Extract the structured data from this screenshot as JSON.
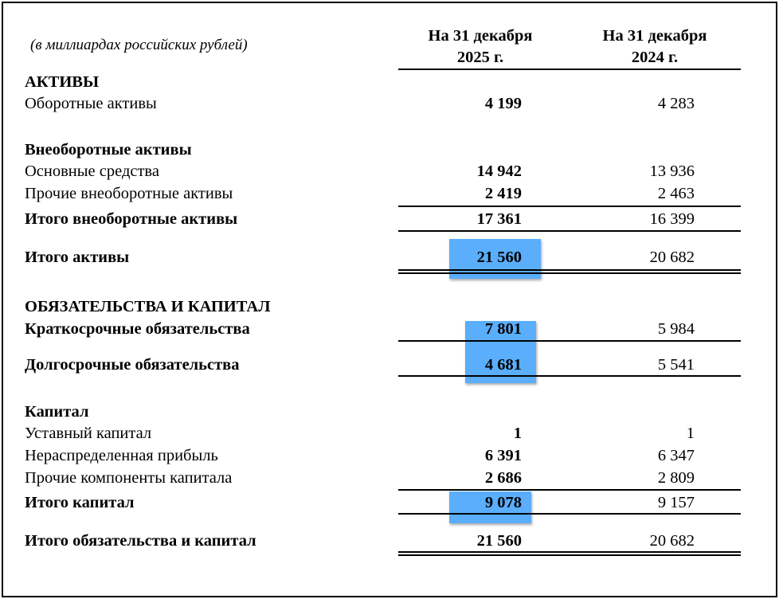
{
  "subtitle": "(в миллиардах российских рублей)",
  "columns": [
    {
      "line1": "На 31 декабря",
      "line2": "2025 г."
    },
    {
      "line1": "На 31 декабря",
      "line2": "2024 г."
    }
  ],
  "highlight_color": "#5aaefc",
  "rows": [
    {
      "label": "АКТИВЫ",
      "bold": true
    },
    {
      "label": "Оборотные активы",
      "v2025": "4 199",
      "v2024": "4 283"
    },
    {
      "label": "Внеоборотные активы",
      "bold": true
    },
    {
      "label": "Основные средства",
      "v2025": "14 942",
      "v2024": "13 936"
    },
    {
      "label": "Прочие внеоборотные активы",
      "v2025": "2 419",
      "v2024": "2 463"
    },
    {
      "label": "Итого внеоборотные активы",
      "bold": true,
      "v2025": "17 361",
      "v2024": "16 399"
    },
    {
      "label": "Итого активы",
      "bold": true,
      "v2025": "21 560",
      "v2024": "20 682",
      "highlighted": true
    },
    {
      "label": "ОБЯЗАТЕЛЬСТВА И КАПИТАЛ",
      "bold": true
    },
    {
      "label": "Краткосрочные обязательства",
      "bold": true,
      "v2025": "7 801",
      "v2024": "5 984",
      "highlighted": true
    },
    {
      "label": "Долгосрочные обязательства",
      "bold": true,
      "v2025": "4 681",
      "v2024": "5 541",
      "highlighted": true
    },
    {
      "label": "Капитал",
      "bold": true
    },
    {
      "label": "Уставный капитал",
      "v2025": "1",
      "v2024": "1"
    },
    {
      "label": "Нераспределенная прибыль",
      "v2025": "6 391",
      "v2024": "6 347"
    },
    {
      "label": "Прочие компоненты капитала",
      "v2025": "2 686",
      "v2024": "2 809"
    },
    {
      "label": "Итого капитал",
      "bold": true,
      "v2025": "9 078",
      "v2024": "9 157",
      "highlighted": true
    },
    {
      "label": "Итого обязательства и капитал",
      "bold": true,
      "v2025": "21 560",
      "v2024": "20 682"
    }
  ]
}
